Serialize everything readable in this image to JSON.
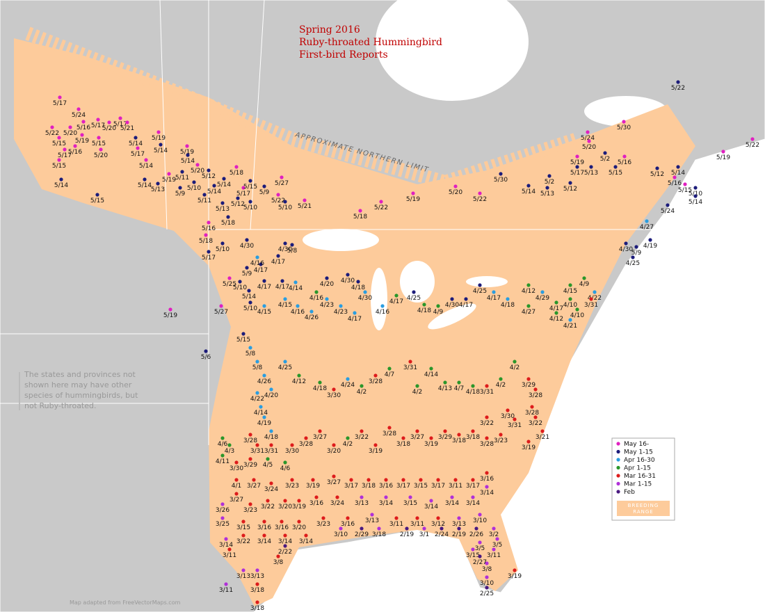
{
  "title": [
    "Spring 2016",
    "Ruby-throated Hummingbird",
    "First-bird Reports"
  ],
  "northern_limit": "APPROXIMATE NORTHERN LIMIT",
  "note": [
    "The states and provinces not",
    "shown here may have other",
    "species of hummingbirds, but",
    "not Ruby-throated."
  ],
  "credit": "Map adapted from FreeVectorMaps.com",
  "breeding_range": [
    "BREEDING",
    "RANGE"
  ],
  "legend": [
    {
      "label": "May 16-",
      "color": "#e020c0",
      "reports": [
        "5/17",
        "5/24",
        "5/22",
        "5/20",
        "5/16",
        "5/17",
        "5/20",
        "5/17",
        "5/21",
        "5/15",
        "5/19",
        "5/15",
        "5/17",
        "5/16",
        "5/20",
        "5/15",
        "5/19",
        "5/17",
        "5/14",
        "5/19",
        "5/19",
        "5/20",
        "5/18",
        "5/17",
        "5/27",
        "5/22",
        "5/21",
        "5/18",
        "5/22",
        "5/19",
        "5/20",
        "5/22",
        "5/16",
        "5/18",
        "5/25",
        "5/19",
        "5/27",
        "5/24",
        "5/20",
        "5/30",
        "5/22",
        "5/19",
        "5/19",
        "5/16",
        "5/16",
        "5/15"
      ]
    },
    {
      "label": "May 1-15",
      "color": "#1c1c7a",
      "reports": [
        "5/14",
        "5/15",
        "5/14",
        "5/14",
        "5/14",
        "5/14",
        "5/13",
        "5/11",
        "5/12",
        "5/9",
        "5/10",
        "5/11",
        "5/14",
        "5/14",
        "5/15",
        "5/9",
        "5/13",
        "5/12",
        "5/10",
        "5/10",
        "5/30",
        "5/18",
        "5/17",
        "5/10",
        "5/6",
        "5/22",
        "5/2",
        "5/12",
        "5/14",
        "5/10",
        "5/14",
        "5/17",
        "5/13",
        "5/15",
        "5/2",
        "5/12",
        "5/14",
        "5/13",
        "5/24",
        "4/30",
        "4/25",
        "4/19",
        "5/9",
        "4/30",
        "4/30",
        "4/17",
        "5/8",
        "5/9",
        "4/17",
        "5/10",
        "5/14",
        "4/17",
        "4/17",
        "5/10",
        "4/30",
        "4/20",
        "4/18",
        "4/25",
        "4/30",
        "4/17",
        "4/25",
        "5/15"
      ]
    },
    {
      "label": "Apr 16-30",
      "color": "#2a9de0",
      "reports": [
        "4/27",
        "4/16",
        "4/14",
        "4/15",
        "4/15",
        "4/16",
        "4/26",
        "4/23",
        "4/23",
        "4/17",
        "4/30",
        "4/16",
        "4/17",
        "4/18",
        "4/29",
        "4/22",
        "4/21",
        "5/8",
        "5/8",
        "4/26",
        "4/22",
        "4/14",
        "4/19",
        "4/18",
        "4/20",
        "4/25",
        "4/24"
      ]
    },
    {
      "label": "Apr 1-15",
      "color": "#2a962a",
      "reports": [
        "4/16",
        "4/17",
        "4/18",
        "4/9",
        "4/12",
        "4/17",
        "4/15",
        "4/9",
        "4/10",
        "4/10",
        "4/12",
        "4/27",
        "4/6",
        "4/3",
        "4/11",
        "4/12",
        "4/18",
        "4/2",
        "4/7",
        "4/14",
        "4/2",
        "4/13",
        "4/7",
        "4/18",
        "4/2",
        "4/2",
        "4/2",
        "4/5",
        "4/6"
      ]
    },
    {
      "label": "Mar 16-31",
      "color": "#dd1c1c",
      "reports": [
        "3/31",
        "3/30",
        "3/28",
        "3/31",
        "3/31",
        "3/29",
        "3/28",
        "3/28",
        "3/30",
        "3/22",
        "3/31",
        "3/22",
        "3/21",
        "3/19",
        "3/28",
        "3/31",
        "3/31",
        "3/30",
        "3/28",
        "3/27",
        "3/20",
        "3/22",
        "3/19",
        "3/28",
        "3/18",
        "3/27",
        "3/19",
        "3/29",
        "3/18",
        "3/18",
        "3/28",
        "3/23",
        "3/30",
        "3/29",
        "4/1",
        "3/27",
        "3/24",
        "3/23",
        "3/19",
        "3/27",
        "3/17",
        "3/18",
        "3/16",
        "3/17",
        "3/15",
        "3/17",
        "3/11",
        "3/17",
        "3/16",
        "3/27",
        "3/23",
        "3/22",
        "3/20",
        "3/19",
        "3/16",
        "3/24",
        "3/15",
        "3/16",
        "3/16",
        "3/20",
        "3/23",
        "3/16",
        "3/11",
        "3/11",
        "3/12",
        "3/22",
        "3/14",
        "3/14",
        "3/14",
        "3/8",
        "3/11",
        "3/19",
        "3/18",
        "3/18"
      ]
    },
    {
      "label": "Mar 1-15",
      "color": "#b030d8",
      "reports": [
        "3/13",
        "3/14",
        "3/15",
        "3/14",
        "3/14",
        "3/14",
        "3/14",
        "3/26",
        "3/25",
        "3/13",
        "3/13",
        "3/10",
        "3/14",
        "3/10",
        "3/18",
        "3/5",
        "3/5",
        "3/15",
        "3/11",
        "3/8",
        "3/10",
        "3/13",
        "3/13",
        "3/11",
        "3/1",
        "3/2"
      ]
    },
    {
      "label": "Feb",
      "color": "#4a1a80",
      "reports": [
        "2/29",
        "2/19",
        "2/24",
        "2/19",
        "2/26",
        "2/22",
        "2/27",
        "2/25"
      ]
    }
  ]
}
